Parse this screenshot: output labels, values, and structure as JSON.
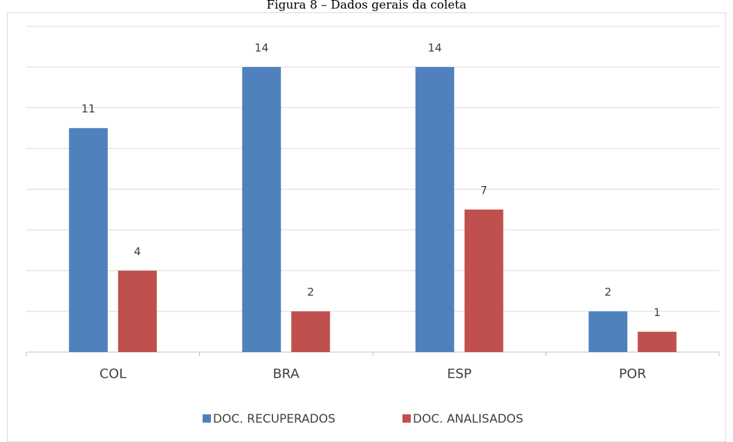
{
  "chart_data": {
    "type": "bar",
    "title": "Figura 8 – Dados gerais da coleta",
    "categories": [
      "COL",
      "BRA",
      "ESP",
      "POR"
    ],
    "series": [
      {
        "name": "DOC. RECUPERADOS",
        "color": "#4f81bd",
        "values": [
          11,
          14,
          14,
          2
        ]
      },
      {
        "name": "DOC. ANALISADOS",
        "color": "#c0504d",
        "values": [
          4,
          2,
          7,
          1
        ]
      }
    ],
    "ylim": [
      0,
      16
    ],
    "yticks": [
      0,
      2,
      4,
      6,
      8,
      10,
      12,
      14,
      16
    ],
    "grid": true,
    "data_labels": true,
    "legend": "bottom"
  }
}
